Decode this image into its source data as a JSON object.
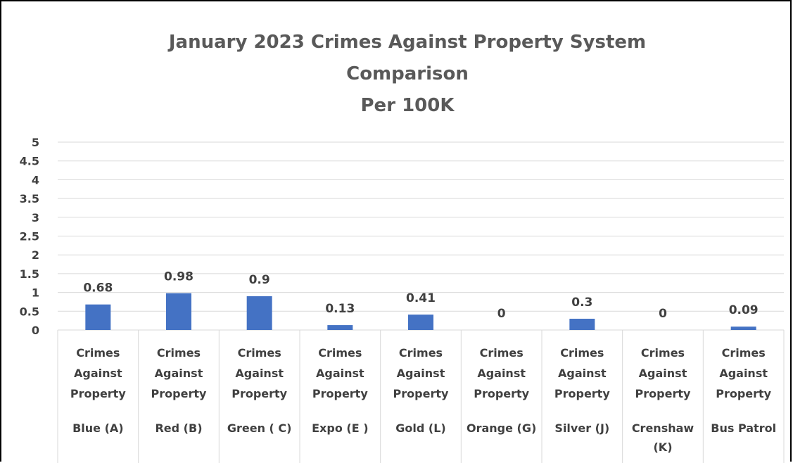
{
  "chart_data": {
    "type": "bar",
    "title_lines": [
      "January 2023 Crimes Against Property System",
      "Comparison",
      "Per 100K"
    ],
    "category_groups": [
      "Blue (A)",
      "Red (B)",
      "Green ( C)",
      "Expo (E )",
      "Gold (L)",
      "Orange (G)",
      "Silver  (J)",
      "Crenshaw (K)",
      "Bus Patrol"
    ],
    "category_group_lines": [
      [
        "Blue (A)"
      ],
      [
        "Red (B)"
      ],
      [
        "Green ( C)"
      ],
      [
        "Expo (E )"
      ],
      [
        "Gold (L)"
      ],
      [
        "Orange (G)"
      ],
      [
        "Silver  (J)"
      ],
      [
        "Crenshaw",
        "(K)"
      ],
      [
        "Bus Patrol"
      ]
    ],
    "subcategory": "Crimes Against Property",
    "subcategory_lines": [
      "Crimes",
      "Against",
      "Property"
    ],
    "values": [
      0.68,
      0.98,
      0.9,
      0.13,
      0.41,
      0,
      0.3,
      0,
      0.09
    ],
    "data_labels": [
      "0.68",
      "0.98",
      "0.9",
      "0.13",
      "0.41",
      "0",
      "0.3",
      "0",
      "0.09"
    ],
    "ylim": [
      0,
      5
    ],
    "yticks": [
      "0",
      "0.5",
      "1",
      "1.5",
      "2",
      "2.5",
      "3",
      "3.5",
      "4",
      "4.5",
      "5"
    ],
    "grid": true,
    "bar_color": "#4472C4",
    "grid_color": "#D9D9D9",
    "legend": "none"
  }
}
